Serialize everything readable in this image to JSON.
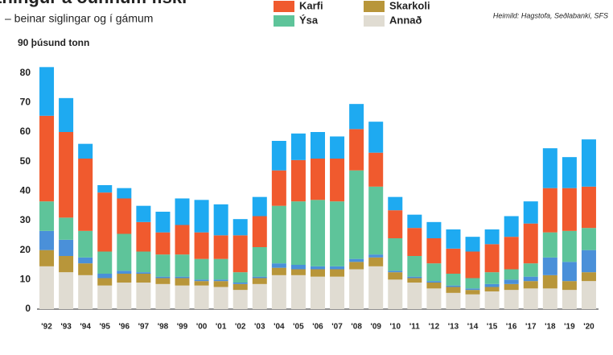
{
  "chart_data": {
    "type": "stacked_bar",
    "title": "Útflutningur á óunnum fiski",
    "subtitle": "– beinar siglingar og í gámum",
    "source": "Heimild: Hagstofa, Seðlabanki, SFS",
    "categories": [
      "'92",
      "'93",
      "'94",
      "'95",
      "'96",
      "'97",
      "'98",
      "'99",
      "'00",
      "'01",
      "'02",
      "'03",
      "'04",
      "'05",
      "'06",
      "'07",
      "'08",
      "'09",
      "'10",
      "'11",
      "'12",
      "'13",
      "'14",
      "'15",
      "'16",
      "'17",
      "'18",
      "'19",
      "'20"
    ],
    "series": [
      {
        "name": "Annað",
        "color": "#e0dcd2",
        "values": [
          14.5,
          12.5,
          11.5,
          8,
          9,
          9,
          8.5,
          8,
          8,
          7.5,
          6.5,
          8.5,
          11.5,
          11.5,
          11,
          11,
          13.5,
          14.5,
          10,
          9,
          7,
          5.5,
          5,
          6,
          6.5,
          7,
          7,
          6.5,
          9.5
        ]
      },
      {
        "name": "Skarkoli",
        "color": "#b8963a",
        "values": [
          5.5,
          5.5,
          4,
          2.5,
          3,
          3,
          2,
          2.5,
          1.5,
          2,
          2,
          2,
          2.5,
          2,
          2.5,
          2.5,
          2.5,
          3,
          2.5,
          1.5,
          2,
          2,
          1.5,
          1.5,
          2,
          2.5,
          4.5,
          3,
          3
        ]
      },
      {
        "color": "#4a90d9",
        "values": [
          6.5,
          5.5,
          2,
          1.5,
          1,
          0.5,
          0.5,
          0.5,
          0.5,
          0.5,
          0.5,
          0.5,
          1.5,
          1.5,
          1,
          1,
          1,
          1,
          0.5,
          0.5,
          0.5,
          0.5,
          0.5,
          1,
          1.5,
          1.5,
          6,
          6.5,
          7.5
        ]
      },
      {
        "name": "Ýsa",
        "color": "#5ec49a",
        "values": [
          10,
          7.5,
          9,
          7.5,
          12.5,
          7,
          7.5,
          7.5,
          7,
          7,
          3.5,
          10,
          19.5,
          21.5,
          22.5,
          22,
          30,
          23,
          11,
          7,
          6,
          4,
          3.5,
          4,
          3.5,
          4.5,
          8.5,
          10.5,
          7.5
        ]
      },
      {
        "name": "Karfi",
        "color": "#f05a2e",
        "values": [
          29,
          29,
          24.5,
          20,
          12,
          10,
          7.5,
          10,
          9,
          8,
          12.5,
          10.5,
          12,
          14,
          14,
          14.5,
          14,
          11.5,
          9.5,
          9.5,
          8.5,
          8.5,
          9,
          9.5,
          11,
          13.5,
          15,
          14.5,
          14
        ]
      },
      {
        "color": "#1eaaf1",
        "values": [
          16.5,
          11.5,
          5,
          2.5,
          3.5,
          5.5,
          7,
          9,
          11,
          10.5,
          5.5,
          6.5,
          10,
          9,
          9,
          7.5,
          8.5,
          10.5,
          4.5,
          4.5,
          5.5,
          6.5,
          5,
          5,
          7,
          7.5,
          13.5,
          10.5,
          16
        ]
      }
    ],
    "ylim": [
      0,
      90
    ],
    "yticks": [
      0,
      10,
      20,
      30,
      40,
      50,
      60,
      70,
      80,
      {
        "value": 90,
        "label": "90 þúsund tonn"
      }
    ]
  }
}
